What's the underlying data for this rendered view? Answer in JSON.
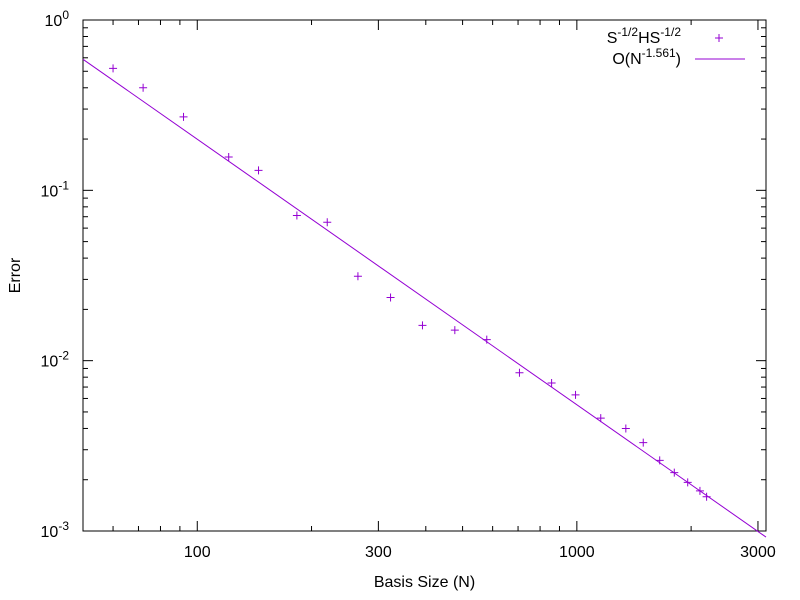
{
  "chart_data": {
    "type": "scatter",
    "title": "",
    "xlabel": "Basis Size (N)",
    "ylabel": "Error",
    "xscale": "log",
    "yscale": "log",
    "xlim": [
      50,
      3150
    ],
    "ylim": [
      0.001,
      1
    ],
    "grid": false,
    "legend_position": "top-right",
    "x_ticks": [
      {
        "value": 100,
        "label": "100"
      },
      {
        "value": 300,
        "label": "300"
      },
      {
        "value": 1000,
        "label": "1000"
      },
      {
        "value": 3000,
        "label": "3000"
      }
    ],
    "y_ticks": [
      {
        "value": 1,
        "base": "10",
        "exp": "0"
      },
      {
        "value": 0.1,
        "base": "10",
        "exp": "-1"
      },
      {
        "value": 0.01,
        "base": "10",
        "exp": "-2"
      },
      {
        "value": 0.001,
        "base": "10",
        "exp": "-3"
      }
    ],
    "x_minor_ticks": [
      60,
      70,
      80,
      90,
      200,
      400,
      500,
      600,
      700,
      800,
      900,
      2000
    ],
    "y_minor_ticks": [
      0.002,
      0.003,
      0.004,
      0.005,
      0.006,
      0.007,
      0.008,
      0.009,
      0.02,
      0.03,
      0.04,
      0.05,
      0.06,
      0.07,
      0.08,
      0.09,
      0.2,
      0.3,
      0.4,
      0.5,
      0.6,
      0.7,
      0.8,
      0.9
    ],
    "series": [
      {
        "name_base": "S",
        "name_sup1": "-1/2",
        "name_mid": "HS",
        "name_sup2": "-1/2",
        "kind": "points",
        "marker": "+",
        "color": "#9400d3",
        "x": [
          60,
          72,
          92,
          121,
          145,
          183,
          220,
          265,
          323,
          392,
          477,
          579,
          706,
          858,
          992,
          1156,
          1346,
          1496,
          1653,
          1806,
          1959,
          2110,
          2197
        ],
        "y": [
          0.52,
          0.4,
          0.27,
          0.157,
          0.131,
          0.0712,
          0.065,
          0.0313,
          0.0235,
          0.0161,
          0.0151,
          0.0133,
          0.0085,
          0.0074,
          0.0063,
          0.0046,
          0.004,
          0.0033,
          0.0026,
          0.0022,
          0.00193,
          0.00172,
          0.00159
        ]
      },
      {
        "name_base": "O(N",
        "name_sup": "-1.561",
        "name_end": ")",
        "kind": "line",
        "color": "#9400d3",
        "x": [
          50,
          3150
        ],
        "y": [
          0.588,
          0.000921
        ]
      }
    ]
  }
}
